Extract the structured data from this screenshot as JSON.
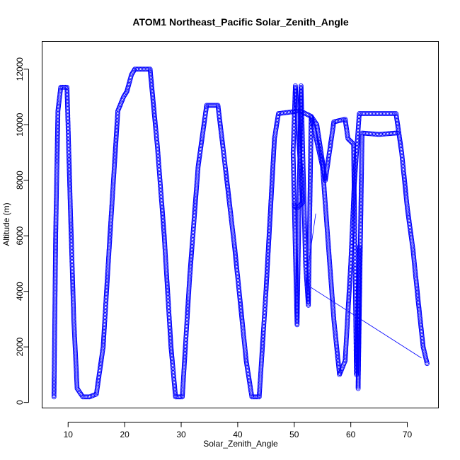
{
  "chart_data": {
    "type": "scatter",
    "title": "ATOM1 Northeast_Pacific Solar_Zenith_Angle",
    "xlabel": "Solar_Zenith_Angle",
    "ylabel": "Altitude (m)",
    "xlim": [
      5.4,
      75.5
    ],
    "ylim": [
      -200,
      13000
    ],
    "xticks": [
      10,
      20,
      30,
      40,
      50,
      60,
      70
    ],
    "yticks": [
      0,
      2000,
      4000,
      6000,
      8000,
      10000,
      12000
    ],
    "grid": false,
    "color": "#0000ff",
    "marker": "open-circle",
    "series": [
      {
        "path": [
          [
            7.5,
            200
          ],
          [
            7.8,
            6000
          ],
          [
            8.2,
            10500
          ],
          [
            8.7,
            11350
          ],
          [
            9.8,
            11350
          ],
          [
            10.4,
            7000
          ],
          [
            11.0,
            3000
          ],
          [
            11.6,
            500
          ],
          [
            12.6,
            200
          ],
          [
            13.8,
            200
          ],
          [
            15.0,
            300
          ],
          [
            16.2,
            2000
          ],
          [
            17.4,
            6000
          ],
          [
            18.8,
            10500
          ],
          [
            19.8,
            11000
          ],
          [
            20.4,
            11200
          ],
          [
            21.2,
            11800
          ],
          [
            21.8,
            12000
          ],
          [
            24.5,
            12000
          ],
          [
            25.8,
            9200
          ],
          [
            27.0,
            6000
          ],
          [
            28.2,
            2000
          ],
          [
            29.0,
            200
          ],
          [
            30.2,
            200
          ],
          [
            31.5,
            4500
          ],
          [
            33.0,
            8500
          ],
          [
            34.5,
            10700
          ],
          [
            36.5,
            10700
          ],
          [
            37.5,
            9000
          ],
          [
            39.5,
            5500
          ],
          [
            41.5,
            1500
          ],
          [
            42.5,
            200
          ],
          [
            43.8,
            200
          ],
          [
            45.0,
            4000
          ],
          [
            46.5,
            9500
          ],
          [
            47.2,
            10400
          ],
          [
            51.0,
            10500
          ],
          [
            53.0,
            10300
          ],
          [
            55.0,
            8500
          ],
          [
            57.0,
            3000
          ],
          [
            58.0,
            1000
          ],
          [
            59.0,
            1500
          ],
          [
            60.0,
            5000
          ],
          [
            60.6,
            7800
          ],
          [
            61.5,
            10400
          ],
          [
            68.0,
            10400
          ],
          [
            69.0,
            9000
          ],
          [
            70.0,
            7000
          ],
          [
            71.0,
            5500
          ],
          [
            72.0,
            3500
          ],
          [
            72.8,
            2000
          ],
          [
            73.5,
            1400
          ]
        ]
      },
      {
        "path": [
          [
            50.0,
            7100
          ],
          [
            50.5,
            7000
          ],
          [
            51.0,
            7100
          ],
          [
            51.5,
            7200
          ],
          [
            50.2,
            11400
          ],
          [
            49.8,
            9000
          ],
          [
            50.5,
            2800
          ],
          [
            51.2,
            11400
          ],
          [
            51.5,
            9000
          ],
          [
            52.0,
            5000
          ],
          [
            52.5,
            3500
          ],
          [
            53.0,
            10300
          ],
          [
            54.0,
            10000
          ],
          [
            55.5,
            8000
          ],
          [
            57.0,
            10100
          ],
          [
            59.0,
            10200
          ],
          [
            59.5,
            9500
          ],
          [
            60.5,
            9300
          ],
          [
            61.0,
            1000
          ],
          [
            61.5,
            5600
          ],
          [
            61.3,
            500
          ],
          [
            62.0,
            9700
          ],
          [
            65.0,
            9650
          ],
          [
            68.0,
            9700
          ],
          [
            68.5,
            9700
          ]
        ]
      }
    ],
    "connector_lines": [
      [
        [
          52.5,
          4200
        ],
        [
          72.5,
          1600
        ]
      ],
      [
        [
          52.0,
          4200
        ],
        [
          53.8,
          6800
        ]
      ]
    ]
  }
}
